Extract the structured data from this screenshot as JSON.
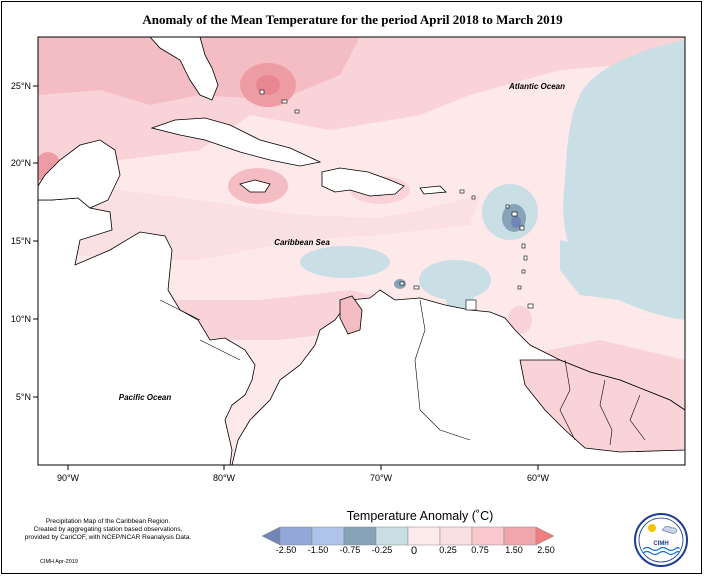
{
  "title": "Anomaly of the Mean Temperature for the period April 2018 to March 2019",
  "map": {
    "lat_labels": [
      "25°N",
      "20°N",
      "15°N",
      "10°N",
      "5°N"
    ],
    "lon_labels": [
      "90°W",
      "80°W",
      "70°W",
      "60°W"
    ],
    "ocean_labels": {
      "atlantic": "Atlantic Ocean",
      "caribbean": "Caribbean Sea",
      "pacific": "Pacific Ocean"
    }
  },
  "legend": {
    "title": "Temperature Anomaly (˚C)",
    "ticks": [
      "-2.50",
      "-1.50",
      "-0.75",
      "-0.25",
      "0",
      "0.25",
      "0.75",
      "1.50",
      "2.50"
    ],
    "colors": [
      "#6f86b6",
      "#93a8d8",
      "#aec4e9",
      "#86a3b8",
      "#c9dfe5",
      "#fdeaea",
      "#f8c8cc",
      "#f0a6ac",
      "#f08080"
    ]
  },
  "credits": {
    "line1": "Precipitation Map of the Caribbean Region.",
    "line2": "Created by aggregating station based observations,",
    "line3": "provided by CariCOF, with NCEP/NCAR Reanalysis Data.",
    "date": "CIMH Apr-2019"
  },
  "logo": {
    "text": "CIMH"
  }
}
